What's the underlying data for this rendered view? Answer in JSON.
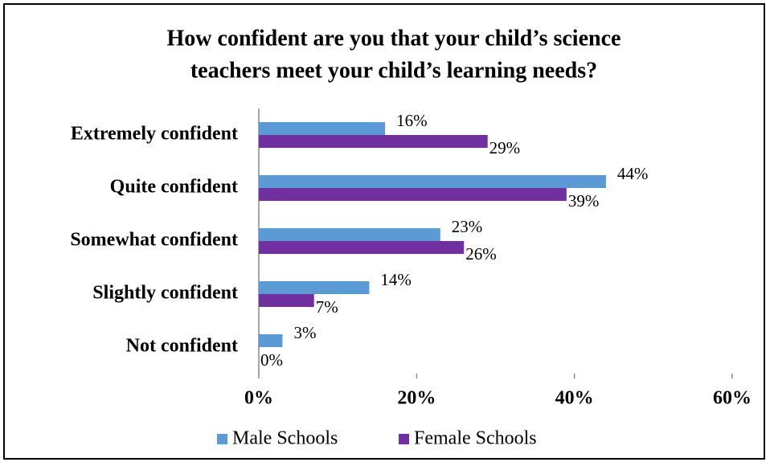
{
  "chart_data": {
    "type": "bar",
    "orientation": "horizontal",
    "title": [
      "How confident are you that your child’s science",
      "teachers meet your child’s learning needs?"
    ],
    "categories": [
      "Extremely confident",
      "Quite confident",
      "Somewhat confident",
      "Slightly confident",
      "Not confident"
    ],
    "series": [
      {
        "name": "Male Schools",
        "color": "#5b9bd5",
        "values": [
          16,
          44,
          23,
          14,
          3
        ],
        "value_labels": [
          "16%",
          "44%",
          "23%",
          "14%",
          "3%"
        ]
      },
      {
        "name": "Female Schools",
        "color": "#7030a0",
        "values": [
          29,
          39,
          26,
          7,
          0
        ],
        "value_labels": [
          "29%",
          "39%",
          "26%",
          "7%",
          "0%"
        ]
      }
    ],
    "xlim": [
      0,
      60
    ],
    "xticks": [
      {
        "value": 0,
        "label": "0%"
      },
      {
        "value": 20,
        "label": "20%"
      },
      {
        "value": 40,
        "label": "40%"
      },
      {
        "value": 60,
        "label": "60%"
      }
    ],
    "legend": "bottom"
  }
}
